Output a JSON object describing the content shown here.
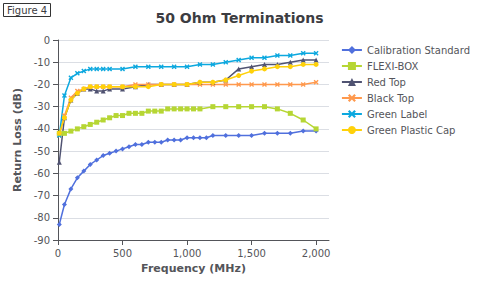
{
  "chart_data": {
    "type": "line",
    "title": "50 Ohm Terminations",
    "annotations": [
      "Figure 4"
    ],
    "xlabel": "Frequency (MHz)",
    "ylabel": "Return Loss (dB)",
    "xlim": [
      0,
      2100
    ],
    "ylim": [
      -90,
      0
    ],
    "xticks": [
      0,
      500,
      1000,
      1500,
      2000
    ],
    "yticks": [
      0,
      -10,
      -20,
      -30,
      -40,
      -50,
      -60,
      -70,
      -80,
      -90
    ],
    "grid": "y",
    "legend": "right",
    "series": [
      {
        "name": "Calibration Standard",
        "marker": "diamond",
        "x": [
          10,
          50,
          100,
          150,
          200,
          250,
          300,
          350,
          400,
          450,
          500,
          550,
          600,
          650,
          700,
          750,
          800,
          850,
          900,
          950,
          1000,
          1050,
          1100,
          1150,
          1200,
          1300,
          1400,
          1500,
          1600,
          1700,
          1800,
          1900,
          2000
        ],
        "values": [
          -83,
          -74,
          -67,
          -62,
          -59,
          -56,
          -54,
          -52,
          -51,
          -50,
          -49,
          -48,
          -47,
          -47,
          -46,
          -46,
          -46,
          -45,
          -45,
          -45,
          -44,
          -44,
          -44,
          -44,
          -43,
          -43,
          -43,
          -43,
          -42,
          -42,
          -42,
          -41,
          -41
        ]
      },
      {
        "name": "FLEXI-BOX",
        "marker": "square",
        "x": [
          10,
          50,
          100,
          150,
          200,
          250,
          300,
          350,
          400,
          450,
          500,
          550,
          600,
          650,
          700,
          750,
          800,
          850,
          900,
          950,
          1000,
          1050,
          1100,
          1200,
          1300,
          1400,
          1500,
          1600,
          1700,
          1800,
          1900,
          2000
        ],
        "values": [
          -42,
          -42,
          -41,
          -40,
          -39,
          -38,
          -37,
          -36,
          -35,
          -34,
          -34,
          -33,
          -33,
          -33,
          -32,
          -32,
          -32,
          -31,
          -31,
          -31,
          -31,
          -31,
          -31,
          -30,
          -30,
          -30,
          -30,
          -30,
          -31,
          -33,
          -36,
          -40
        ]
      },
      {
        "name": "Red Top",
        "marker": "triangle",
        "x": [
          10,
          50,
          100,
          150,
          200,
          250,
          300,
          350,
          400,
          500,
          600,
          700,
          800,
          900,
          1000,
          1100,
          1200,
          1300,
          1400,
          1500,
          1600,
          1700,
          1800,
          1900,
          2000
        ],
        "values": [
          -55,
          -35,
          -27,
          -24,
          -22,
          -22,
          -23,
          -23,
          -22,
          -22,
          -21,
          -20,
          -20,
          -20,
          -20,
          -19,
          -19,
          -18,
          -13,
          -12,
          -11,
          -11,
          -10,
          -9,
          -9
        ]
      },
      {
        "name": "Black Top",
        "marker": "x",
        "x": [
          10,
          50,
          100,
          150,
          200,
          250,
          300,
          350,
          400,
          500,
          600,
          700,
          800,
          900,
          1000,
          1100,
          1200,
          1300,
          1400,
          1500,
          1600,
          1700,
          1800,
          1900,
          2000
        ],
        "values": [
          -43,
          -34,
          -26,
          -23,
          -22,
          -21,
          -21,
          -21,
          -21,
          -21,
          -20,
          -20,
          -20,
          -20,
          -20,
          -20,
          -20,
          -20,
          -20,
          -20,
          -20,
          -20,
          -20,
          -20,
          -19
        ]
      },
      {
        "name": "Green Label",
        "marker": "x",
        "x": [
          10,
          50,
          100,
          150,
          200,
          250,
          300,
          350,
          400,
          500,
          600,
          700,
          800,
          900,
          1000,
          1100,
          1200,
          1300,
          1400,
          1500,
          1600,
          1700,
          1800,
          1900,
          2000
        ],
        "values": [
          -43,
          -25,
          -17,
          -15,
          -14,
          -13,
          -13,
          -13,
          -13,
          -13,
          -12,
          -12,
          -12,
          -12,
          -12,
          -11,
          -11,
          -10,
          -9,
          -8,
          -8,
          -7,
          -7,
          -6,
          -6
        ]
      },
      {
        "name": "Green Plastic Cap",
        "marker": "circle",
        "x": [
          10,
          50,
          100,
          150,
          200,
          250,
          300,
          350,
          400,
          500,
          600,
          700,
          800,
          900,
          1000,
          1100,
          1200,
          1300,
          1400,
          1500,
          1600,
          1700,
          1800,
          1900,
          2000
        ],
        "values": [
          -42,
          -35,
          -27,
          -24,
          -22,
          -21,
          -21,
          -21,
          -21,
          -21,
          -21,
          -21,
          -20,
          -20,
          -20,
          -19,
          -19,
          -18,
          -16,
          -14,
          -13,
          -12,
          -12,
          -11,
          -11
        ]
      }
    ]
  }
}
